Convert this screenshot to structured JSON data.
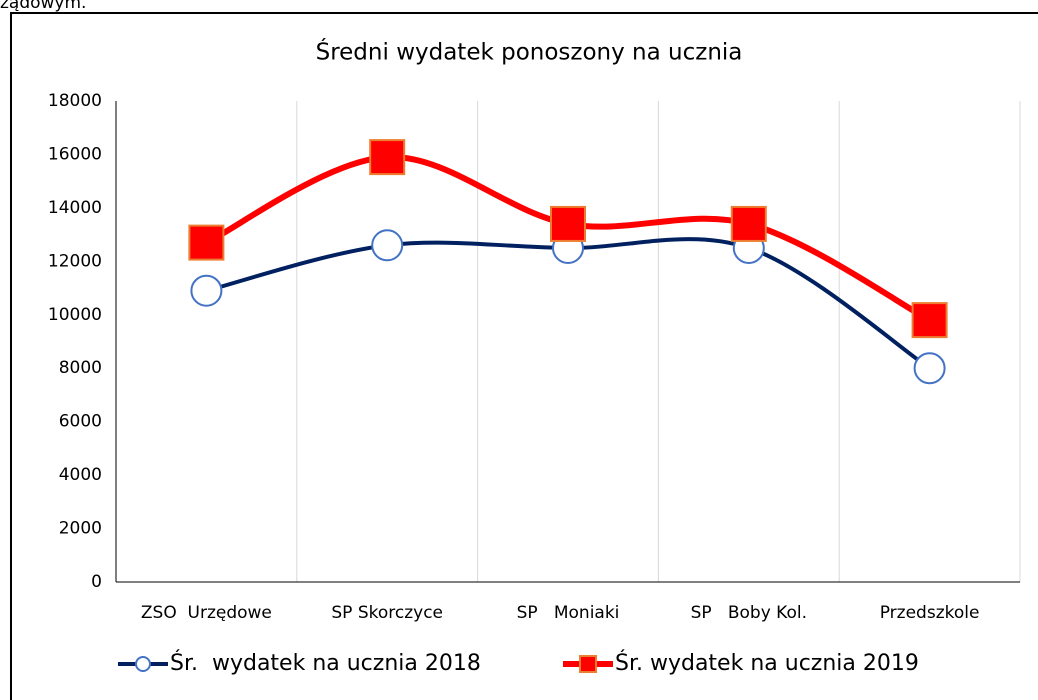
{
  "header_fragment": "ządowym.",
  "chart_data": {
    "type": "line",
    "title": "Średni wydatek ponoszony na ucznia",
    "categories": [
      "ZSO  Urzędowe",
      "SP Skorczyce",
      "SP   Moniaki",
      "SP   Boby Kol.",
      "Przedszkole"
    ],
    "series": [
      {
        "name": "Śr.  wydatek na ucznia 2018",
        "color": "#002060",
        "marker": "circle",
        "marker_color": "#ffffff",
        "marker_edge": "#4472c4",
        "values": [
          10900,
          12600,
          12500,
          12500,
          8000
        ]
      },
      {
        "name": "Śr. wydatek na ucznia 2019",
        "color": "#ff0000",
        "marker": "square",
        "marker_color": "#ff0000",
        "marker_edge": "#ed7d31",
        "values": [
          12700,
          15900,
          13400,
          13400,
          9800
        ]
      }
    ],
    "ylim": [
      0,
      18000
    ],
    "yticks": [
      0,
      2000,
      4000,
      6000,
      8000,
      10000,
      12000,
      14000,
      16000,
      18000
    ],
    "grid": "x",
    "legend": "bottom",
    "smooth": true
  }
}
